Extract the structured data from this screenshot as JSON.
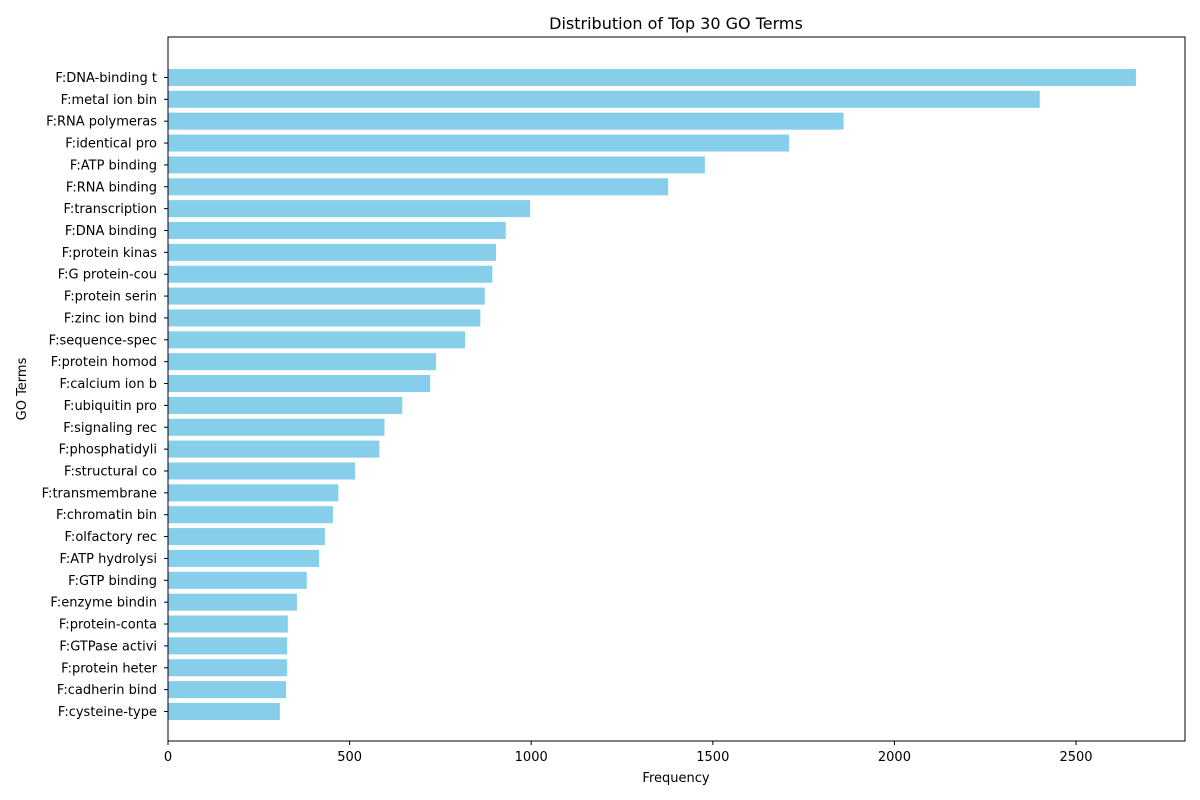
{
  "chart_data": {
    "type": "bar",
    "orientation": "horizontal",
    "title": "Distribution of Top 30 GO Terms",
    "xlabel": "Frequency",
    "ylabel": "GO Terms",
    "xlim": [
      0,
      2800
    ],
    "xticks": [
      0,
      500,
      1000,
      1500,
      2000,
      2500
    ],
    "bar_color": "#87ceeb",
    "grid": false,
    "categories": [
      "F:DNA-binding t",
      "F:metal ion bin",
      "F:RNA polymeras",
      "F:identical pro",
      "F:ATP binding",
      "F:RNA binding",
      "F:transcription",
      "F:DNA binding",
      "F:protein kinas",
      "F:G protein-cou",
      "F:protein serin",
      "F:zinc ion bind",
      "F:sequence-spec",
      "F:protein homod",
      "F:calcium ion b",
      "F:ubiquitin pro",
      "F:signaling rec",
      "F:phosphatidyli",
      "F:structural co",
      "F:transmembrane",
      "F:chromatin bin",
      "F:olfactory rec",
      "F:ATP hydrolysi",
      "F:GTP binding",
      "F:enzyme bindin",
      "F:protein-conta",
      "F:GTPase activi",
      "F:protein heter",
      "F:cadherin bind",
      "F:cysteine-type"
    ],
    "values": [
      2665,
      2400,
      1860,
      1710,
      1478,
      1377,
      997,
      930,
      903,
      893,
      872,
      860,
      818,
      738,
      722,
      645,
      596,
      582,
      515,
      469,
      454,
      432,
      416,
      382,
      355,
      330,
      328,
      328,
      325,
      308
    ]
  }
}
